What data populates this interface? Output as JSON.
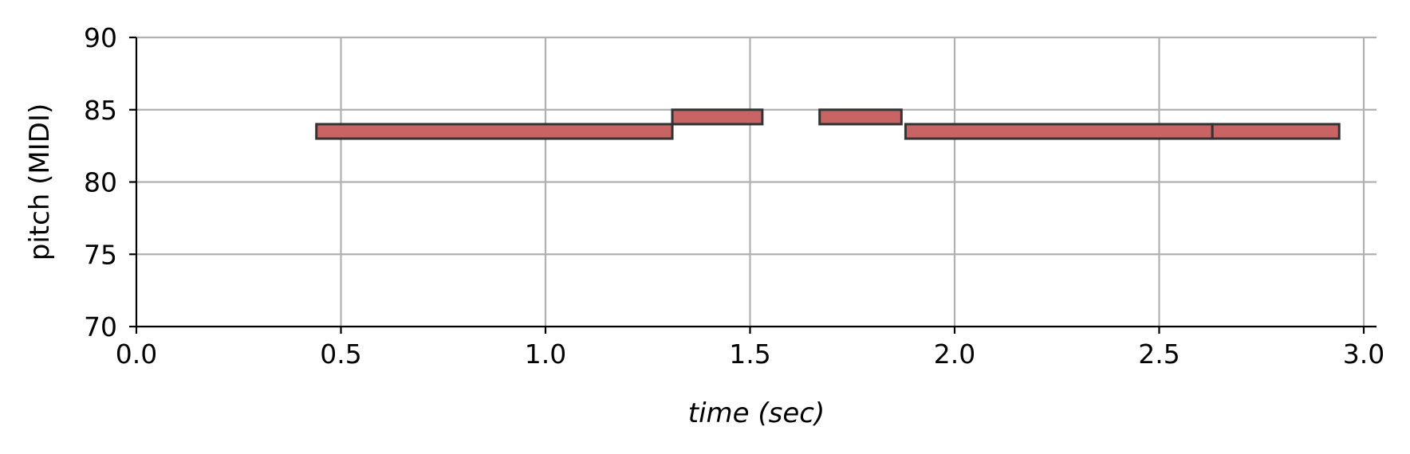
{
  "chart_data": {
    "type": "bar",
    "subtype": "piano-roll",
    "title": "",
    "xlabel": "time (sec)",
    "ylabel": "pitch (MIDI)",
    "xlim": [
      0.0,
      3.04
    ],
    "ylim": [
      70,
      90
    ],
    "xticks": [
      "0.0",
      "0.5",
      "1.0",
      "1.5",
      "2.0",
      "2.5",
      "3.0"
    ],
    "yticks": [
      "70",
      "75",
      "80",
      "85",
      "90"
    ],
    "grid": true,
    "notes": [
      {
        "start": 0.44,
        "end": 1.31,
        "pitch": 83
      },
      {
        "start": 1.31,
        "end": 1.53,
        "pitch": 84
      },
      {
        "start": 1.67,
        "end": 1.87,
        "pitch": 84
      },
      {
        "start": 1.88,
        "end": 2.63,
        "pitch": 83
      },
      {
        "start": 2.63,
        "end": 2.94,
        "pitch": 83
      }
    ],
    "colors": {
      "note_fill": "#c86464",
      "note_edge": "#333333",
      "grid": "#b0b0b0",
      "axis": "#000000"
    }
  }
}
